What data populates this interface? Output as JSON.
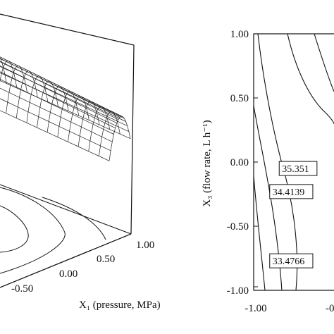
{
  "chart_data": [
    {
      "type": "surface",
      "view": "3d-surface-with-floor-contours",
      "xlabel": "X₁ (pressure, MPa)",
      "x_tick_labels": [
        "1.00",
        "0.50",
        "0.00",
        "-0.50"
      ],
      "grid": true
    },
    {
      "type": "contour",
      "xlabel": "",
      "ylabel": "X₃ (flow rate, L h⁻¹)",
      "ylim": [
        -1.0,
        1.0
      ],
      "xlim": [
        -1.0,
        1.0
      ],
      "y_tick_labels": [
        "1.00",
        "0.50",
        "0.00",
        "-0.50",
        "-1.00"
      ],
      "x_tick_labels": [
        "-1.00",
        "-0"
      ],
      "contours": [
        {
          "level_label": "35.351",
          "x": -0.55,
          "y": -0.05
        },
        {
          "level_label": "34.4139",
          "x": -0.85,
          "y": -0.23
        },
        {
          "level_label": "33.4766",
          "x": -0.85,
          "y": -0.77
        }
      ],
      "grid": false
    }
  ]
}
